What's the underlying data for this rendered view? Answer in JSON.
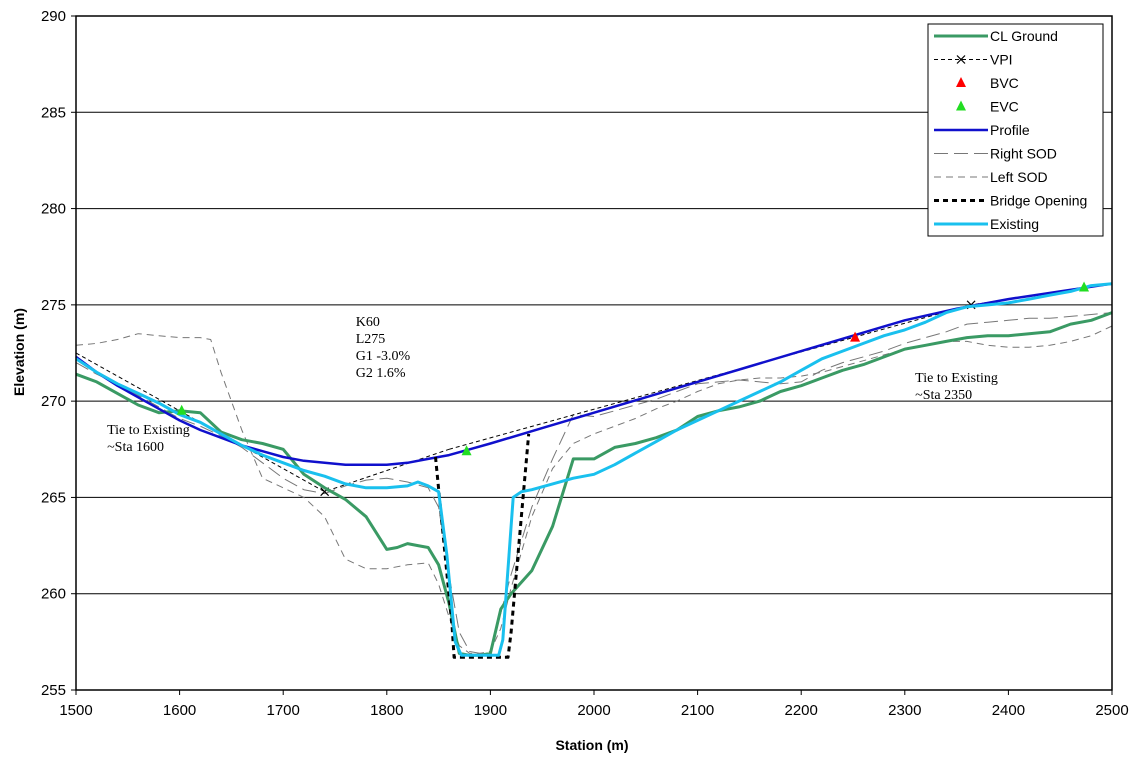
{
  "chart_data": {
    "type": "line",
    "title": "",
    "xlabel": "Station (m)",
    "ylabel": "Elevation (m)",
    "xlim": [
      1500,
      2500
    ],
    "ylim": [
      255,
      290
    ],
    "x_ticks": [
      1500,
      1600,
      1700,
      1800,
      1900,
      2000,
      2100,
      2200,
      2300,
      2400,
      2500
    ],
    "y_ticks": [
      255,
      260,
      265,
      270,
      275,
      280,
      285,
      290
    ],
    "grid": "horizontal",
    "legend_position": "top-right",
    "colors": {
      "cl_ground": "#3a9a64",
      "vpi": "#000000",
      "bvc": "#ff0000",
      "evc": "#22dd22",
      "profile": "#1010cc",
      "right_sod": "#777777",
      "left_sod": "#777777",
      "bridge_opening": "#000000",
      "existing": "#19c0ee"
    },
    "series": [
      {
        "name": "CL Ground",
        "style": "solid-thick",
        "x": [
          1500,
          1520,
          1540,
          1560,
          1580,
          1600,
          1620,
          1640,
          1660,
          1680,
          1700,
          1720,
          1740,
          1760,
          1780,
          1800,
          1810,
          1820,
          1830,
          1840,
          1850,
          1860,
          1870,
          1880,
          1890,
          1900,
          1910,
          1920,
          1940,
          1960,
          1980,
          2000,
          2020,
          2040,
          2060,
          2080,
          2100,
          2120,
          2140,
          2160,
          2180,
          2200,
          2220,
          2240,
          2260,
          2280,
          2300,
          2320,
          2340,
          2360,
          2380,
          2400,
          2420,
          2440,
          2460,
          2480,
          2500
        ],
        "y": [
          271.4,
          271.0,
          270.4,
          269.8,
          269.4,
          269.5,
          269.4,
          268.4,
          268.0,
          267.8,
          267.5,
          266.2,
          265.5,
          264.9,
          264.0,
          262.3,
          262.4,
          262.6,
          262.5,
          262.4,
          261.5,
          259.5,
          256.9,
          256.8,
          256.8,
          256.9,
          259.2,
          260.0,
          261.2,
          263.5,
          267.0,
          267.0,
          267.6,
          267.8,
          268.1,
          268.5,
          269.2,
          269.5,
          269.7,
          270.0,
          270.5,
          270.8,
          271.2,
          271.6,
          271.9,
          272.3,
          272.7,
          272.9,
          273.1,
          273.3,
          273.4,
          273.4,
          273.5,
          273.6,
          274.0,
          274.2,
          274.6
        ]
      },
      {
        "name": "VPI",
        "style": "dashed-x",
        "x": [
          1500,
          1740,
          1860
        ],
        "y": [
          272.5,
          265.3,
          267.5
        ],
        "x2": [
          1860,
          2364,
          2500
        ],
        "y2": [
          267.5,
          275.0,
          276.1
        ]
      },
      {
        "name": "BVC",
        "style": "marker-triangle",
        "x": [
          2252
        ],
        "y": [
          273.3
        ]
      },
      {
        "name": "EVC",
        "style": "marker-triangle",
        "x": [
          1602,
          1877,
          2473
        ],
        "y": [
          269.5,
          267.4,
          275.9
        ]
      },
      {
        "name": "Profile",
        "style": "solid",
        "x": [
          1500,
          1520,
          1540,
          1560,
          1580,
          1600,
          1620,
          1640,
          1660,
          1680,
          1700,
          1720,
          1740,
          1760,
          1780,
          1800,
          1820,
          1840,
          1860,
          1880,
          1900,
          1950,
          2000,
          2050,
          2100,
          2150,
          2200,
          2250,
          2300,
          2350,
          2400,
          2450,
          2500
        ],
        "y": [
          272.3,
          271.5,
          270.8,
          270.2,
          269.6,
          269.0,
          268.5,
          268.1,
          267.7,
          267.4,
          267.1,
          266.9,
          266.8,
          266.7,
          266.7,
          266.7,
          266.8,
          267.0,
          267.2,
          267.5,
          267.8,
          268.6,
          269.4,
          270.2,
          271.0,
          271.8,
          272.6,
          273.4,
          274.2,
          274.8,
          275.3,
          275.7,
          276.1
        ]
      },
      {
        "name": "Right SOD",
        "style": "long-dash",
        "x": [
          1500,
          1520,
          1540,
          1560,
          1580,
          1600,
          1620,
          1640,
          1660,
          1680,
          1700,
          1720,
          1740,
          1760,
          1780,
          1800,
          1820,
          1840,
          1850,
          1860,
          1870,
          1880,
          1890,
          1900,
          1910,
          1920,
          1940,
          1960,
          1980,
          2000,
          2020,
          2040,
          2060,
          2080,
          2100,
          2120,
          2140,
          2160,
          2180,
          2200,
          2220,
          2240,
          2260,
          2280,
          2300,
          2320,
          2340,
          2360,
          2380,
          2400,
          2420,
          2440,
          2460,
          2480,
          2500
        ],
        "y": [
          272.0,
          271.4,
          270.9,
          270.3,
          269.7,
          269.1,
          268.7,
          268.2,
          267.6,
          266.8,
          266.0,
          265.4,
          265.2,
          265.6,
          265.9,
          266.0,
          265.8,
          265.5,
          264.5,
          261.0,
          258.0,
          257.0,
          256.9,
          257.0,
          259.0,
          261.0,
          264.5,
          267.0,
          269.3,
          269.2,
          269.5,
          269.8,
          270.1,
          270.5,
          270.9,
          271.0,
          271.1,
          271.0,
          270.9,
          271.0,
          271.6,
          272.0,
          272.3,
          272.6,
          273.0,
          273.3,
          273.6,
          274.0,
          274.1,
          274.2,
          274.3,
          274.3,
          274.4,
          274.5,
          274.6
        ]
      },
      {
        "name": "Left SOD",
        "style": "dash",
        "x": [
          1500,
          1520,
          1540,
          1560,
          1580,
          1600,
          1620,
          1630,
          1640,
          1660,
          1680,
          1700,
          1720,
          1740,
          1760,
          1780,
          1800,
          1820,
          1840,
          1850,
          1860,
          1870,
          1880,
          1890,
          1900,
          1910,
          1920,
          1940,
          1960,
          1980,
          2000,
          2020,
          2040,
          2060,
          2080,
          2100,
          2120,
          2140,
          2160,
          2180,
          2200,
          2220,
          2240,
          2260,
          2280,
          2300,
          2320,
          2340,
          2360,
          2380,
          2400,
          2420,
          2440,
          2460,
          2480,
          2500
        ],
        "y": [
          272.9,
          273.0,
          273.2,
          273.5,
          273.4,
          273.3,
          273.3,
          273.2,
          271.5,
          268.5,
          266.0,
          265.5,
          265.0,
          264.0,
          261.8,
          261.3,
          261.3,
          261.5,
          261.6,
          260.5,
          258.8,
          257.3,
          256.9,
          256.9,
          257.0,
          258.2,
          260.3,
          264.0,
          266.5,
          267.8,
          268.3,
          268.7,
          269.1,
          269.6,
          270.0,
          270.5,
          270.9,
          271.1,
          271.2,
          271.2,
          271.3,
          271.5,
          271.8,
          272.1,
          272.4,
          272.7,
          272.9,
          273.1,
          273.1,
          272.9,
          272.8,
          272.8,
          272.9,
          273.1,
          273.4,
          273.9
        ]
      },
      {
        "name": "Bridge Opening",
        "style": "dotted-thick",
        "x": [
          1847,
          1863,
          1865,
          1917,
          1920,
          1937
        ],
        "y": [
          267.1,
          258.3,
          256.7,
          256.7,
          258.0,
          268.3
        ]
      },
      {
        "name": "Existing",
        "style": "solid-thick",
        "x": [
          1500,
          1520,
          1540,
          1560,
          1580,
          1600,
          1620,
          1640,
          1660,
          1680,
          1700,
          1720,
          1740,
          1760,
          1780,
          1800,
          1820,
          1830,
          1840,
          1850,
          1858,
          1866,
          1872,
          1890,
          1908,
          1912,
          1918,
          1922,
          1930,
          1940,
          1960,
          1980,
          2000,
          2020,
          2040,
          2060,
          2080,
          2100,
          2120,
          2140,
          2160,
          2180,
          2200,
          2220,
          2240,
          2260,
          2280,
          2300,
          2320,
          2340,
          2360,
          2380,
          2400,
          2420,
          2440,
          2460,
          2480,
          2500
        ],
        "y": [
          272.2,
          271.5,
          270.9,
          270.4,
          269.9,
          269.3,
          268.9,
          268.3,
          267.7,
          267.2,
          266.8,
          266.4,
          266.1,
          265.7,
          265.5,
          265.5,
          265.6,
          265.8,
          265.6,
          265.3,
          262.0,
          257.5,
          256.8,
          256.8,
          256.8,
          257.6,
          262.0,
          265.0,
          265.3,
          265.4,
          265.7,
          266.0,
          266.2,
          266.7,
          267.3,
          267.9,
          268.5,
          269.0,
          269.5,
          270.0,
          270.5,
          271.0,
          271.6,
          272.2,
          272.6,
          273.0,
          273.4,
          273.7,
          274.1,
          274.6,
          274.9,
          275.0,
          275.1,
          275.3,
          275.5,
          275.7,
          276.0,
          276.1
        ]
      }
    ],
    "annotations": [
      {
        "lines": [
          "K60",
          "L275",
          "G1 -3.0%",
          "G2  1.6%"
        ],
        "x": 1770,
        "y": 273.9
      },
      {
        "lines": [
          "Tie to Existing",
          "~Sta 1600"
        ],
        "x": 1530,
        "y": 268.3
      },
      {
        "lines": [
          "Tie to Existing",
          "~Sta 2350"
        ],
        "x": 2310,
        "y": 271.0
      }
    ]
  }
}
